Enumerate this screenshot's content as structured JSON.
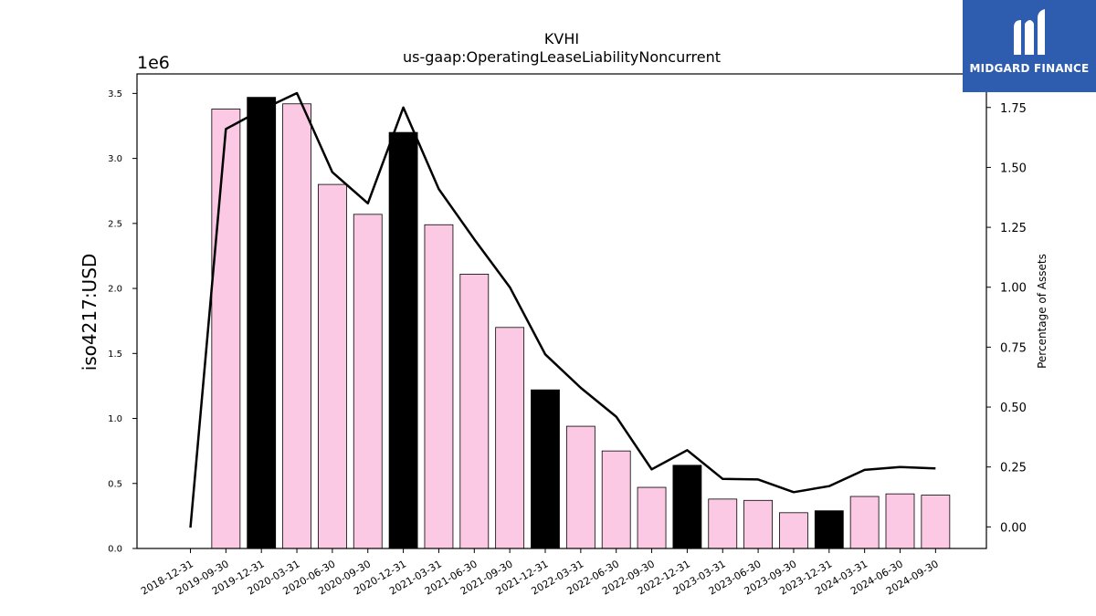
{
  "chart_data": {
    "type": "bar",
    "title": "KVHI",
    "subtitle": "us-gaap:OperatingLeaseLiabilityNoncurrent",
    "ylabel": "iso4217:USD",
    "y2label": "Percentage of Assets",
    "y_offset_text": "1e6",
    "ylim": [
      0,
      3650000
    ],
    "y2lim": [
      -0.09,
      1.89
    ],
    "yticks": [
      "0.0",
      "0.5",
      "1.0",
      "1.5",
      "2.0",
      "2.5",
      "3.0",
      "3.5"
    ],
    "y2ticks": [
      "0.00",
      "0.25",
      "0.50",
      "0.75",
      "1.00",
      "1.25",
      "1.50",
      "1.75"
    ],
    "categories": [
      "2018-12-31",
      "2019-09-30",
      "2019-12-31",
      "2020-03-31",
      "2020-06-30",
      "2020-09-30",
      "2020-12-31",
      "2021-03-31",
      "2021-06-30",
      "2021-09-30",
      "2021-12-31",
      "2022-03-31",
      "2022-06-30",
      "2022-09-30",
      "2022-12-31",
      "2023-03-31",
      "2023-06-30",
      "2023-09-30",
      "2023-12-31",
      "2024-03-31",
      "2024-06-30",
      "2024-09-30"
    ],
    "series": [
      {
        "type": "bar",
        "values": [
          0,
          3380000,
          3470000,
          3420000,
          2800000,
          2570000,
          3200000,
          2490000,
          2110000,
          1700000,
          1220000,
          940000,
          750000,
          470000,
          640000,
          380000,
          370000,
          275000,
          290000,
          400000,
          420000,
          410000
        ],
        "fill_colors": [
          "#fcc9e4",
          "#fcc9e4",
          "#000000",
          "#fcc9e4",
          "#fcc9e4",
          "#fcc9e4",
          "#000000",
          "#fcc9e4",
          "#fcc9e4",
          "#fcc9e4",
          "#000000",
          "#fcc9e4",
          "#fcc9e4",
          "#fcc9e4",
          "#000000",
          "#fcc9e4",
          "#fcc9e4",
          "#fcc9e4",
          "#000000",
          "#fcc9e4",
          "#fcc9e4",
          "#fcc9e4"
        ]
      },
      {
        "type": "line",
        "axis": "right",
        "color": "#000000",
        "values": [
          -0.003,
          1.66,
          1.74,
          1.81,
          1.48,
          1.35,
          1.75,
          1.41,
          1.2,
          1.0,
          0.72,
          0.58,
          0.46,
          0.24,
          0.32,
          0.2,
          0.198,
          0.145,
          0.17,
          0.238,
          0.25,
          0.244
        ]
      }
    ],
    "grid": false,
    "legend": "none"
  },
  "logo": {
    "text": "MIDGARD FINANCE",
    "color": "#2e5cae"
  }
}
